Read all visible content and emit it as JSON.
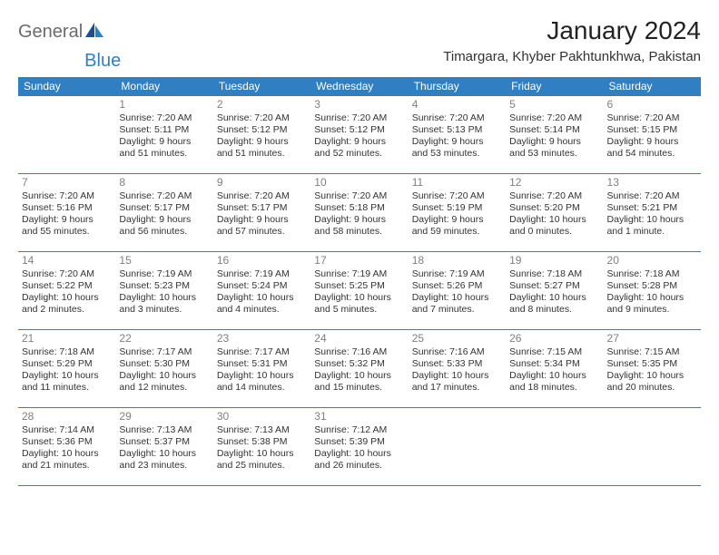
{
  "logo": {
    "text1": "General",
    "text2": "Blue"
  },
  "title": "January 2024",
  "location": "Timargara, Khyber Pakhtunkhwa, Pakistan",
  "colors": {
    "header_bg": "#2f7fc2",
    "header_text": "#ffffff",
    "border": "#2f7fc2",
    "daynum": "#808080"
  },
  "weekday_labels": [
    "Sunday",
    "Monday",
    "Tuesday",
    "Wednesday",
    "Thursday",
    "Friday",
    "Saturday"
  ],
  "weeks": [
    [
      {
        "n": "",
        "sr": "",
        "ss": "",
        "dl1": "",
        "dl2": ""
      },
      {
        "n": "1",
        "sr": "Sunrise: 7:20 AM",
        "ss": "Sunset: 5:11 PM",
        "dl1": "Daylight: 9 hours",
        "dl2": "and 51 minutes."
      },
      {
        "n": "2",
        "sr": "Sunrise: 7:20 AM",
        "ss": "Sunset: 5:12 PM",
        "dl1": "Daylight: 9 hours",
        "dl2": "and 51 minutes."
      },
      {
        "n": "3",
        "sr": "Sunrise: 7:20 AM",
        "ss": "Sunset: 5:12 PM",
        "dl1": "Daylight: 9 hours",
        "dl2": "and 52 minutes."
      },
      {
        "n": "4",
        "sr": "Sunrise: 7:20 AM",
        "ss": "Sunset: 5:13 PM",
        "dl1": "Daylight: 9 hours",
        "dl2": "and 53 minutes."
      },
      {
        "n": "5",
        "sr": "Sunrise: 7:20 AM",
        "ss": "Sunset: 5:14 PM",
        "dl1": "Daylight: 9 hours",
        "dl2": "and 53 minutes."
      },
      {
        "n": "6",
        "sr": "Sunrise: 7:20 AM",
        "ss": "Sunset: 5:15 PM",
        "dl1": "Daylight: 9 hours",
        "dl2": "and 54 minutes."
      }
    ],
    [
      {
        "n": "7",
        "sr": "Sunrise: 7:20 AM",
        "ss": "Sunset: 5:16 PM",
        "dl1": "Daylight: 9 hours",
        "dl2": "and 55 minutes."
      },
      {
        "n": "8",
        "sr": "Sunrise: 7:20 AM",
        "ss": "Sunset: 5:17 PM",
        "dl1": "Daylight: 9 hours",
        "dl2": "and 56 minutes."
      },
      {
        "n": "9",
        "sr": "Sunrise: 7:20 AM",
        "ss": "Sunset: 5:17 PM",
        "dl1": "Daylight: 9 hours",
        "dl2": "and 57 minutes."
      },
      {
        "n": "10",
        "sr": "Sunrise: 7:20 AM",
        "ss": "Sunset: 5:18 PM",
        "dl1": "Daylight: 9 hours",
        "dl2": "and 58 minutes."
      },
      {
        "n": "11",
        "sr": "Sunrise: 7:20 AM",
        "ss": "Sunset: 5:19 PM",
        "dl1": "Daylight: 9 hours",
        "dl2": "and 59 minutes."
      },
      {
        "n": "12",
        "sr": "Sunrise: 7:20 AM",
        "ss": "Sunset: 5:20 PM",
        "dl1": "Daylight: 10 hours",
        "dl2": "and 0 minutes."
      },
      {
        "n": "13",
        "sr": "Sunrise: 7:20 AM",
        "ss": "Sunset: 5:21 PM",
        "dl1": "Daylight: 10 hours",
        "dl2": "and 1 minute."
      }
    ],
    [
      {
        "n": "14",
        "sr": "Sunrise: 7:20 AM",
        "ss": "Sunset: 5:22 PM",
        "dl1": "Daylight: 10 hours",
        "dl2": "and 2 minutes."
      },
      {
        "n": "15",
        "sr": "Sunrise: 7:19 AM",
        "ss": "Sunset: 5:23 PM",
        "dl1": "Daylight: 10 hours",
        "dl2": "and 3 minutes."
      },
      {
        "n": "16",
        "sr": "Sunrise: 7:19 AM",
        "ss": "Sunset: 5:24 PM",
        "dl1": "Daylight: 10 hours",
        "dl2": "and 4 minutes."
      },
      {
        "n": "17",
        "sr": "Sunrise: 7:19 AM",
        "ss": "Sunset: 5:25 PM",
        "dl1": "Daylight: 10 hours",
        "dl2": "and 5 minutes."
      },
      {
        "n": "18",
        "sr": "Sunrise: 7:19 AM",
        "ss": "Sunset: 5:26 PM",
        "dl1": "Daylight: 10 hours",
        "dl2": "and 7 minutes."
      },
      {
        "n": "19",
        "sr": "Sunrise: 7:18 AM",
        "ss": "Sunset: 5:27 PM",
        "dl1": "Daylight: 10 hours",
        "dl2": "and 8 minutes."
      },
      {
        "n": "20",
        "sr": "Sunrise: 7:18 AM",
        "ss": "Sunset: 5:28 PM",
        "dl1": "Daylight: 10 hours",
        "dl2": "and 9 minutes."
      }
    ],
    [
      {
        "n": "21",
        "sr": "Sunrise: 7:18 AM",
        "ss": "Sunset: 5:29 PM",
        "dl1": "Daylight: 10 hours",
        "dl2": "and 11 minutes."
      },
      {
        "n": "22",
        "sr": "Sunrise: 7:17 AM",
        "ss": "Sunset: 5:30 PM",
        "dl1": "Daylight: 10 hours",
        "dl2": "and 12 minutes."
      },
      {
        "n": "23",
        "sr": "Sunrise: 7:17 AM",
        "ss": "Sunset: 5:31 PM",
        "dl1": "Daylight: 10 hours",
        "dl2": "and 14 minutes."
      },
      {
        "n": "24",
        "sr": "Sunrise: 7:16 AM",
        "ss": "Sunset: 5:32 PM",
        "dl1": "Daylight: 10 hours",
        "dl2": "and 15 minutes."
      },
      {
        "n": "25",
        "sr": "Sunrise: 7:16 AM",
        "ss": "Sunset: 5:33 PM",
        "dl1": "Daylight: 10 hours",
        "dl2": "and 17 minutes."
      },
      {
        "n": "26",
        "sr": "Sunrise: 7:15 AM",
        "ss": "Sunset: 5:34 PM",
        "dl1": "Daylight: 10 hours",
        "dl2": "and 18 minutes."
      },
      {
        "n": "27",
        "sr": "Sunrise: 7:15 AM",
        "ss": "Sunset: 5:35 PM",
        "dl1": "Daylight: 10 hours",
        "dl2": "and 20 minutes."
      }
    ],
    [
      {
        "n": "28",
        "sr": "Sunrise: 7:14 AM",
        "ss": "Sunset: 5:36 PM",
        "dl1": "Daylight: 10 hours",
        "dl2": "and 21 minutes."
      },
      {
        "n": "29",
        "sr": "Sunrise: 7:13 AM",
        "ss": "Sunset: 5:37 PM",
        "dl1": "Daylight: 10 hours",
        "dl2": "and 23 minutes."
      },
      {
        "n": "30",
        "sr": "Sunrise: 7:13 AM",
        "ss": "Sunset: 5:38 PM",
        "dl1": "Daylight: 10 hours",
        "dl2": "and 25 minutes."
      },
      {
        "n": "31",
        "sr": "Sunrise: 7:12 AM",
        "ss": "Sunset: 5:39 PM",
        "dl1": "Daylight: 10 hours",
        "dl2": "and 26 minutes."
      },
      {
        "n": "",
        "sr": "",
        "ss": "",
        "dl1": "",
        "dl2": ""
      },
      {
        "n": "",
        "sr": "",
        "ss": "",
        "dl1": "",
        "dl2": ""
      },
      {
        "n": "",
        "sr": "",
        "ss": "",
        "dl1": "",
        "dl2": ""
      }
    ]
  ]
}
